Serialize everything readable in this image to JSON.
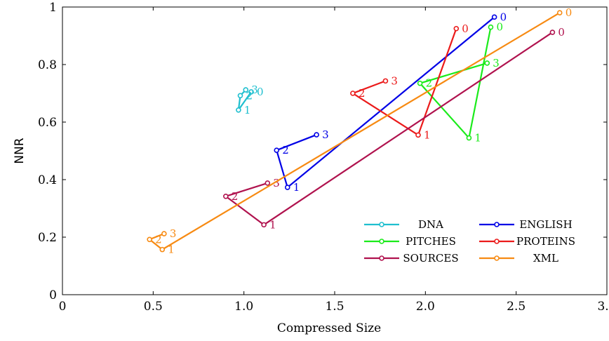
{
  "chart_data": {
    "type": "line",
    "title": "",
    "xlabel": "Compressed Size",
    "ylabel": "NNR",
    "xlim": [
      0,
      3.0
    ],
    "ylim": [
      0,
      1
    ],
    "x_ticks": [
      "0",
      "0.5",
      "1.0",
      "1.5",
      "2.0",
      "2.5",
      "3.0"
    ],
    "y_ticks": [
      "0",
      "0.2",
      "0.4",
      "0.6",
      "0.8",
      "1"
    ],
    "grid": false,
    "legend_position": "bottom-right",
    "series": [
      {
        "name": "DNA",
        "color": "#1fbfcf",
        "points": [
          {
            "x": 1.04,
            "y": 0.705,
            "label": "0"
          },
          {
            "x": 0.97,
            "y": 0.642,
            "label": "1"
          },
          {
            "x": 0.98,
            "y": 0.692,
            "label": "2"
          },
          {
            "x": 1.01,
            "y": 0.712,
            "label": "3"
          }
        ]
      },
      {
        "name": "ENGLISH",
        "color": "#0000e6",
        "points": [
          {
            "x": 2.38,
            "y": 0.965,
            "label": "0"
          },
          {
            "x": 1.24,
            "y": 0.373,
            "label": "1"
          },
          {
            "x": 1.18,
            "y": 0.502,
            "label": "2"
          },
          {
            "x": 1.4,
            "y": 0.556,
            "label": "3"
          }
        ]
      },
      {
        "name": "PITCHES",
        "color": "#1aeb1a",
        "points": [
          {
            "x": 2.36,
            "y": 0.93,
            "label": "0"
          },
          {
            "x": 2.24,
            "y": 0.545,
            "label": "1"
          },
          {
            "x": 1.97,
            "y": 0.735,
            "label": "2"
          },
          {
            "x": 2.34,
            "y": 0.805,
            "label": "3"
          }
        ]
      },
      {
        "name": "PROTEINS",
        "color": "#eb1a1a",
        "points": [
          {
            "x": 2.17,
            "y": 0.925,
            "label": "0"
          },
          {
            "x": 1.96,
            "y": 0.555,
            "label": "1"
          },
          {
            "x": 1.6,
            "y": 0.7,
            "label": "2"
          },
          {
            "x": 1.78,
            "y": 0.743,
            "label": "3"
          }
        ]
      },
      {
        "name": "SOURCES",
        "color": "#b0124e",
        "points": [
          {
            "x": 2.7,
            "y": 0.912,
            "label": "0"
          },
          {
            "x": 1.11,
            "y": 0.243,
            "label": "1"
          },
          {
            "x": 0.9,
            "y": 0.342,
            "label": "2"
          },
          {
            "x": 1.13,
            "y": 0.388,
            "label": "3"
          }
        ]
      },
      {
        "name": "XML",
        "color": "#f78a12",
        "points": [
          {
            "x": 2.74,
            "y": 0.98,
            "label": "0"
          },
          {
            "x": 0.55,
            "y": 0.157,
            "label": "1"
          },
          {
            "x": 0.48,
            "y": 0.192,
            "label": "2"
          },
          {
            "x": 0.56,
            "y": 0.212,
            "label": "3"
          }
        ]
      }
    ],
    "legend": [
      {
        "name": "DNA",
        "color": "#1fbfcf"
      },
      {
        "name": "ENGLISH",
        "color": "#0000e6"
      },
      {
        "name": "PITCHES",
        "color": "#1aeb1a"
      },
      {
        "name": "PROTEINS",
        "color": "#eb1a1a"
      },
      {
        "name": "SOURCES",
        "color": "#b0124e"
      },
      {
        "name": "XML",
        "color": "#f78a12"
      }
    ]
  }
}
